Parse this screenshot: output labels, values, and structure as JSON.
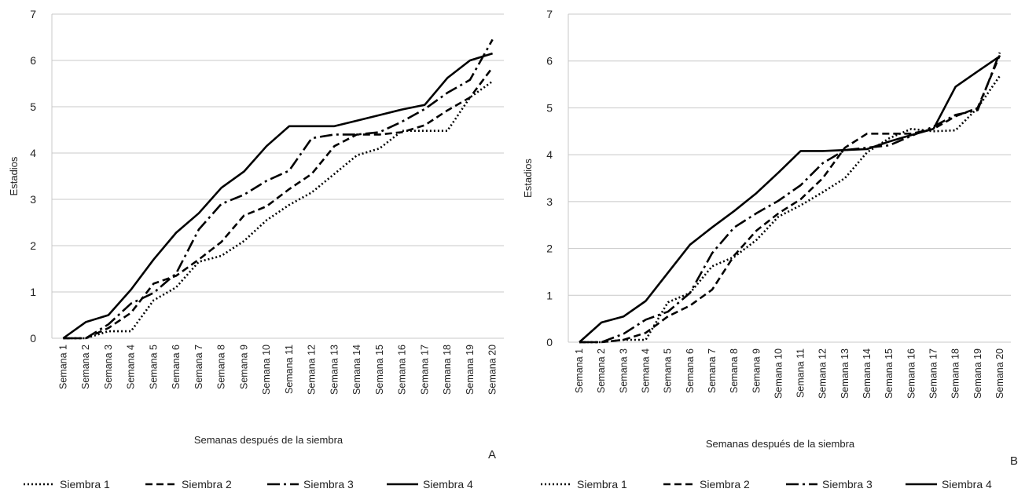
{
  "chart_data": [
    {
      "type": "line",
      "panel_label": "A",
      "xlabel": "Semanas después de la siembra",
      "ylabel": "Estadios",
      "ylim": [
        0,
        7
      ],
      "yticks": [
        "0",
        "1",
        "2",
        "3",
        "4",
        "5",
        "6",
        "7"
      ],
      "grid": true,
      "legend_position": "bottom",
      "categories": [
        "Semana 1",
        "Semana 2",
        "Semana 3",
        "Semana 4",
        "Semana 5",
        "Semana 6",
        "Semana 7",
        "Semana 8",
        "Semana 9",
        "Semana 10",
        "Semana 11",
        "Semana 12",
        "Semana 13",
        "Semana 14",
        "Semana 15",
        "Semana 16",
        "Semana 17",
        "Semana 18",
        "Semana 19",
        "Semana 20"
      ],
      "series": [
        {
          "name": "Siembra 1",
          "dash": "dotted",
          "values": [
            0,
            0,
            0.15,
            0.15,
            0.82,
            1.1,
            1.65,
            1.78,
            2.1,
            2.55,
            2.88,
            3.15,
            3.55,
            3.95,
            4.1,
            4.48,
            4.48,
            4.48,
            5.2,
            5.55
          ]
        },
        {
          "name": "Siembra 2",
          "dash": "dashed",
          "values": [
            0,
            0,
            0.22,
            0.55,
            1.18,
            1.35,
            1.7,
            2.08,
            2.65,
            2.85,
            3.22,
            3.55,
            4.15,
            4.4,
            4.4,
            4.45,
            4.6,
            4.92,
            5.2,
            5.85
          ]
        },
        {
          "name": "Siembra 3",
          "dash": "dashdot",
          "values": [
            0,
            0,
            0.3,
            0.75,
            0.98,
            1.4,
            2.35,
            2.9,
            3.1,
            3.4,
            3.62,
            4.32,
            4.4,
            4.4,
            4.45,
            4.68,
            4.95,
            5.3,
            5.58,
            6.45
          ]
        },
        {
          "name": "Siembra 4",
          "dash": "solid",
          "values": [
            0,
            0.35,
            0.5,
            1.05,
            1.7,
            2.28,
            2.7,
            3.25,
            3.6,
            4.15,
            4.58,
            4.58,
            4.58,
            4.7,
            4.82,
            4.94,
            5.04,
            5.62,
            6.0,
            6.15
          ]
        }
      ]
    },
    {
      "type": "line",
      "panel_label": "B",
      "xlabel": "Semanas después de la siembra",
      "ylabel": "Estadios",
      "ylim": [
        0,
        7
      ],
      "yticks": [
        "0",
        "1",
        "2",
        "3",
        "4",
        "5",
        "6",
        "7"
      ],
      "grid": true,
      "legend_position": "bottom",
      "categories": [
        "Semana 1",
        "Semana 2",
        "Semana 3",
        "Semana 4",
        "Semana 5",
        "Semana 6",
        "Semana 7",
        "Semana 8",
        "Semana 9",
        "Semana 10",
        "Semana 11",
        "Semana 12",
        "Semana 13",
        "Semana 14",
        "Semana 15",
        "Semana 16",
        "Semana 17",
        "Semana 18",
        "Semana 19",
        "Semana 20"
      ],
      "series": [
        {
          "name": "Siembra 1",
          "dash": "dotted",
          "values": [
            0,
            0,
            0.05,
            0.05,
            0.85,
            1.05,
            1.62,
            1.82,
            2.18,
            2.68,
            2.92,
            3.2,
            3.5,
            4.05,
            4.35,
            4.55,
            4.5,
            4.52,
            5.0,
            5.68
          ]
        },
        {
          "name": "Siembra 2",
          "dash": "dashed",
          "values": [
            0,
            0,
            0.05,
            0.2,
            0.55,
            0.78,
            1.12,
            1.85,
            2.38,
            2.75,
            3.05,
            3.5,
            4.15,
            4.45,
            4.45,
            4.45,
            4.55,
            4.82,
            5.0,
            6.12
          ]
        },
        {
          "name": "Siembra 3",
          "dash": "dashdot",
          "values": [
            0,
            0,
            0.18,
            0.48,
            0.65,
            1.05,
            1.9,
            2.45,
            2.75,
            3.02,
            3.35,
            3.82,
            4.1,
            4.15,
            4.2,
            4.4,
            4.6,
            4.85,
            4.95,
            6.18
          ]
        },
        {
          "name": "Siembra 4",
          "dash": "solid",
          "values": [
            0,
            0.42,
            0.55,
            0.88,
            1.48,
            2.08,
            2.45,
            2.8,
            3.18,
            3.62,
            4.08,
            4.08,
            4.1,
            4.12,
            4.28,
            4.42,
            4.55,
            5.45,
            5.78,
            6.1
          ]
        }
      ]
    }
  ]
}
